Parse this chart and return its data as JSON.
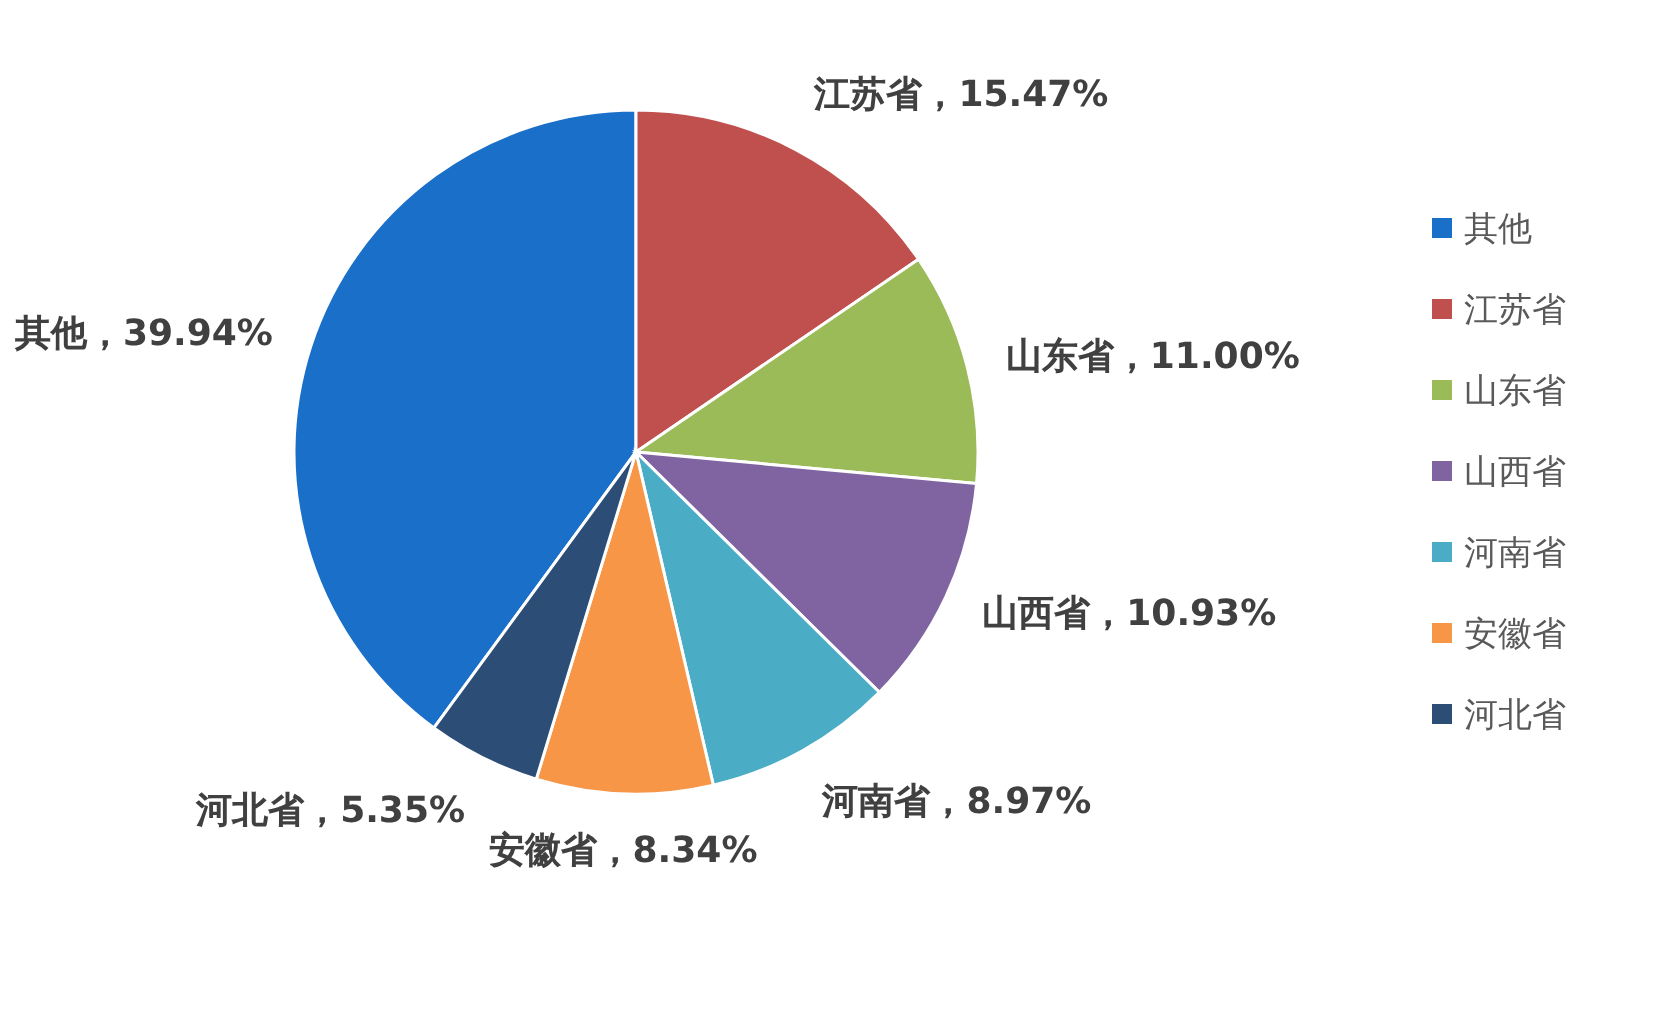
{
  "chart_data": {
    "type": "pie",
    "categories": [
      "其他",
      "江苏省",
      "山东省",
      "山西省",
      "河南省",
      "安徽省",
      "河北省"
    ],
    "values": [
      39.94,
      15.47,
      11.0,
      10.93,
      8.97,
      8.34,
      5.35
    ],
    "colors": [
      "#1a6fc9",
      "#c0504d",
      "#9bbb59",
      "#8064a2",
      "#4bacc6",
      "#f79646",
      "#2c4d75"
    ],
    "value_labels": [
      "其他，39.94%",
      "江苏省，15.47%",
      "山东省，11.00%",
      "山西省，10.93%",
      "河南省，8.97%",
      "安徽省，8.34%",
      "河北省，5.35%"
    ],
    "legend": "right"
  }
}
